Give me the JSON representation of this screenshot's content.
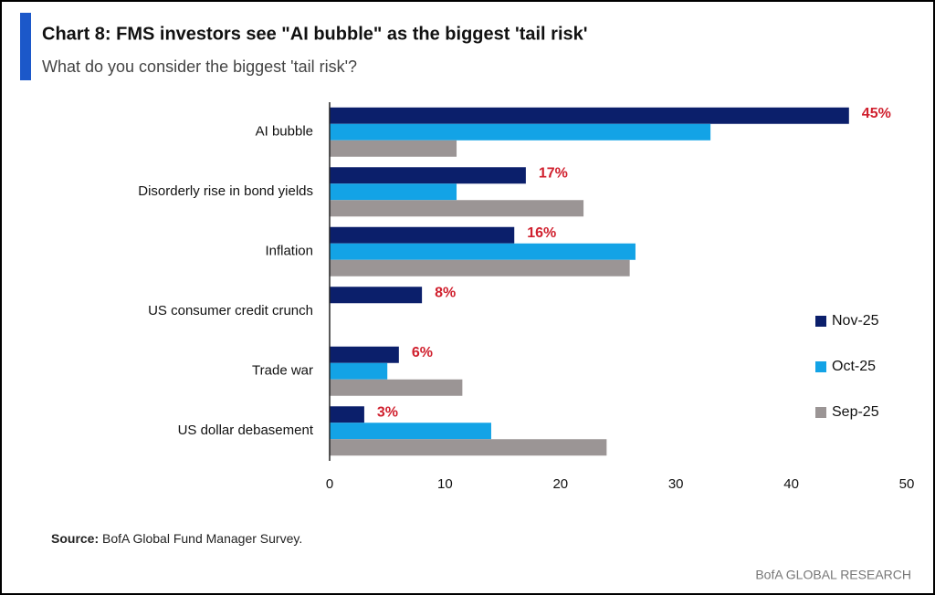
{
  "chart_data": {
    "type": "hbar",
    "title": "Chart 8: FMS investors see \"AI bubble\" as the biggest 'tail risk'",
    "subtitle": "What do you consider the biggest 'tail risk'?",
    "categories": [
      "AI bubble",
      "Disorderly rise in bond yields",
      "Inflation",
      "US consumer credit crunch",
      "Trade war",
      "US dollar debasement"
    ],
    "series": [
      {
        "name": "Nov-25",
        "color": "#0b1f6b",
        "values": [
          45,
          17,
          16,
          8,
          6,
          3
        ],
        "value_labels": [
          "45%",
          "17%",
          "16%",
          "8%",
          "6%",
          "3%"
        ]
      },
      {
        "name": "Oct-25",
        "color": "#13a3e6",
        "values": [
          33,
          11,
          26.5,
          null,
          5,
          14
        ]
      },
      {
        "name": "Sep-25",
        "color": "#9b9595",
        "values": [
          11,
          22,
          26,
          null,
          11.5,
          24
        ]
      }
    ],
    "xlim": [
      0,
      50
    ],
    "xticks": [
      0,
      10,
      20,
      30,
      40,
      50
    ],
    "grid": false,
    "legend": "right",
    "value_label_color": "#d0202e",
    "source_label": "Source:",
    "source_text": "BofA Global Fund Manager Survey.",
    "brand": "BofA GLOBAL RESEARCH"
  }
}
